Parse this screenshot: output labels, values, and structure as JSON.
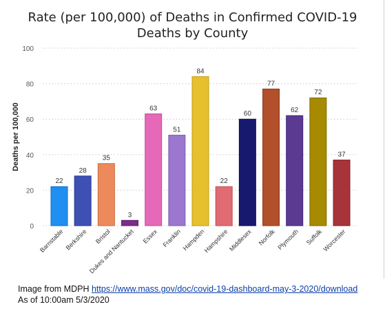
{
  "chart_data": {
    "type": "bar",
    "title_line1": "Rate (per 100,000) of Deaths in Confirmed COVID-19",
    "title_line2": "Deaths by County",
    "xlabel": "",
    "ylabel": "Deaths per 100,000",
    "ylim": [
      0,
      100
    ],
    "yticks": [
      "0",
      "20",
      "40",
      "60",
      "80",
      "100"
    ],
    "grid": true,
    "categories": [
      "Barnstable",
      "Berkshire",
      "Bristol",
      "Dukes and Nantucket",
      "Essex",
      "Franklin",
      "Hampden",
      "Hampshire",
      "Middlesex",
      "Norfolk",
      "Plymouth",
      "Suffolk",
      "Worcester"
    ],
    "values": [
      22,
      28,
      35,
      3,
      63,
      51,
      84,
      22,
      60,
      77,
      62,
      72,
      37
    ],
    "colors": [
      "#1f8ff2",
      "#3e50b4",
      "#ec8a5c",
      "#7a2d8a",
      "#e668b8",
      "#9b77d0",
      "#e6c02e",
      "#e06b72",
      "#16196e",
      "#b2502b",
      "#5b3a92",
      "#a88a00",
      "#a7343a"
    ],
    "borders": [
      "#0e6fc4",
      "#2d3d90",
      "#c86c40",
      "#5c1f6a",
      "#c24c96",
      "#7d5cb2",
      "#c29e12",
      "#bf4e56",
      "#0a0c4a",
      "#8c3a1c",
      "#40267a",
      "#806a00",
      "#822428"
    ]
  },
  "source": {
    "prefix": "Image from MDPH ",
    "url_text": "https://www.mass.gov/doc/covid-19-dashboard-may-3-2020/download",
    "timestamp": "As of 10:00am 5/3/2020"
  }
}
